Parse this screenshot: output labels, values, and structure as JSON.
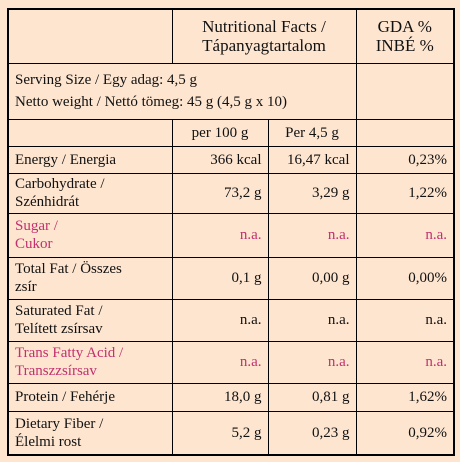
{
  "header": {
    "title": [
      "Nutritional Facts /",
      "Tápanyagtartalom"
    ],
    "gda": [
      "GDA %",
      "INBÉ %"
    ]
  },
  "serving": [
    "Serving Size / Egy adag: 4,5 g",
    "Netto weight / Nettó tömeg: 45 g (4,5 g x 10)"
  ],
  "columns": [
    "per 100 g",
    "Per 4,5 g"
  ],
  "rows": [
    {
      "name": [
        "Energy / Energia"
      ],
      "values": [
        "366 kcal",
        "16,47 kcal",
        "0,23%"
      ]
    },
    {
      "name": [
        "Carbohydrate /",
        "Szénhidrát"
      ],
      "values": [
        "73,2 g",
        "3,29 g",
        "1,22%"
      ]
    },
    {
      "name": [
        "Sugar /",
        "Cukor"
      ],
      "values": [
        "n.a.",
        "n.a.",
        "n.a."
      ],
      "color": "#c2306e"
    },
    {
      "name": [
        "Total Fat / Összes",
        "zsír"
      ],
      "values": [
        "0,1 g",
        "0,00 g",
        "0,00%"
      ]
    },
    {
      "name": [
        "Saturated Fat /",
        "Telített zsírsav"
      ],
      "values": [
        "n.a.",
        "n.a.",
        "n.a."
      ]
    },
    {
      "name": [
        "Trans Fatty Acid /",
        "Transzzsírsav"
      ],
      "values": [
        "n.a.",
        "n.a.",
        "n.a."
      ],
      "color": "#c2306e"
    },
    {
      "name": [
        "Protein / Fehérje"
      ],
      "values": [
        "18,0 g",
        "0,81 g",
        "1,62%"
      ]
    },
    {
      "name": [
        "Dietary Fiber /",
        "Élelmi rost"
      ],
      "values": [
        "5,2 g",
        "0,23 g",
        "0,92%"
      ]
    }
  ]
}
